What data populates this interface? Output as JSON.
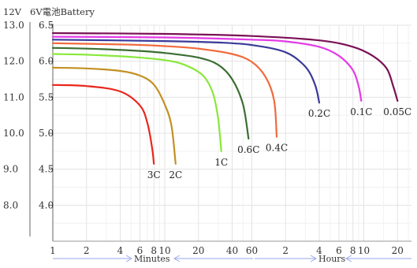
{
  "chart_data": {
    "type": "line",
    "header": {
      "left_axis": "12V",
      "right_axis": "6V電池Battery"
    },
    "y_left_ticks": [
      "13.0",
      "12.0",
      "11.0",
      "10.0",
      "9.0",
      "8.0"
    ],
    "y_right_ticks": [
      "6.5",
      "6.0",
      "5.5",
      "5.0",
      "4.5",
      "4.0"
    ],
    "ylim_12v": [
      7.0,
      13.0
    ],
    "x_ticks": [
      "1",
      "2",
      "4",
      "6",
      "8",
      "10",
      "20",
      "40",
      "60",
      "2",
      "4",
      "6",
      "8",
      "10",
      "20"
    ],
    "x_tick_minutes": [
      1,
      2,
      4,
      6,
      8,
      10,
      20,
      40,
      60,
      120,
      240,
      360,
      480,
      600,
      1200
    ],
    "xlim_minutes": [
      1,
      1600
    ],
    "x_scale": "log",
    "ranges": {
      "minutes": "Minutes",
      "hours": "Hours"
    },
    "grid": true,
    "series": [
      {
        "name": "3C",
        "color": "#e8281e",
        "x": [
          1,
          2,
          4,
          6,
          7,
          7.7,
          8
        ],
        "y": [
          11.34,
          11.31,
          11.16,
          10.77,
          10.28,
          9.6,
          9.15
        ]
      },
      {
        "name": "2C",
        "color": "#c39023",
        "x": [
          1,
          2,
          4,
          6,
          8,
          10,
          11.5,
          12.5
        ],
        "y": [
          11.82,
          11.8,
          11.73,
          11.6,
          11.35,
          10.8,
          10.2,
          9.15
        ]
      },
      {
        "name": "1C",
        "color": "#88e83a",
        "x": [
          1,
          2,
          5,
          10,
          15,
          22,
          27,
          30,
          32
        ],
        "y": [
          12.2,
          12.18,
          12.12,
          12.03,
          11.9,
          11.6,
          11.1,
          10.4,
          9.5
        ]
      },
      {
        "name": "0.6C",
        "color": "#3b6e32",
        "x": [
          1,
          2,
          5,
          10,
          20,
          30,
          40,
          50,
          56
        ],
        "y": [
          12.37,
          12.35,
          12.3,
          12.23,
          12.1,
          11.9,
          11.5,
          10.8,
          9.85
        ]
      },
      {
        "name": "0.4C",
        "color": "#f06a3b",
        "x": [
          1,
          5,
          10,
          20,
          40,
          60,
          80,
          95,
          100
        ],
        "y": [
          12.5,
          12.46,
          12.42,
          12.35,
          12.2,
          11.98,
          11.55,
          10.9,
          9.9
        ]
      },
      {
        "name": "0.2C",
        "color": "#3a3a9a",
        "x": [
          1,
          10,
          30,
          60,
          120,
          180,
          220,
          240
        ],
        "y": [
          12.6,
          12.56,
          12.52,
          12.45,
          12.25,
          11.85,
          11.35,
          10.85
        ]
      },
      {
        "name": "0.1C",
        "color": "#e43be6",
        "x": [
          1,
          10,
          60,
          120,
          240,
          360,
          480,
          540,
          570
        ],
        "y": [
          12.68,
          12.66,
          12.6,
          12.55,
          12.4,
          12.15,
          11.75,
          11.3,
          10.9
        ]
      },
      {
        "name": "0.05C",
        "color": "#7a1054",
        "x": [
          1,
          10,
          60,
          240,
          480,
          720,
          960,
          1100,
          1200
        ],
        "y": [
          12.78,
          12.76,
          12.7,
          12.58,
          12.4,
          12.15,
          11.8,
          11.3,
          10.9
        ]
      }
    ]
  }
}
